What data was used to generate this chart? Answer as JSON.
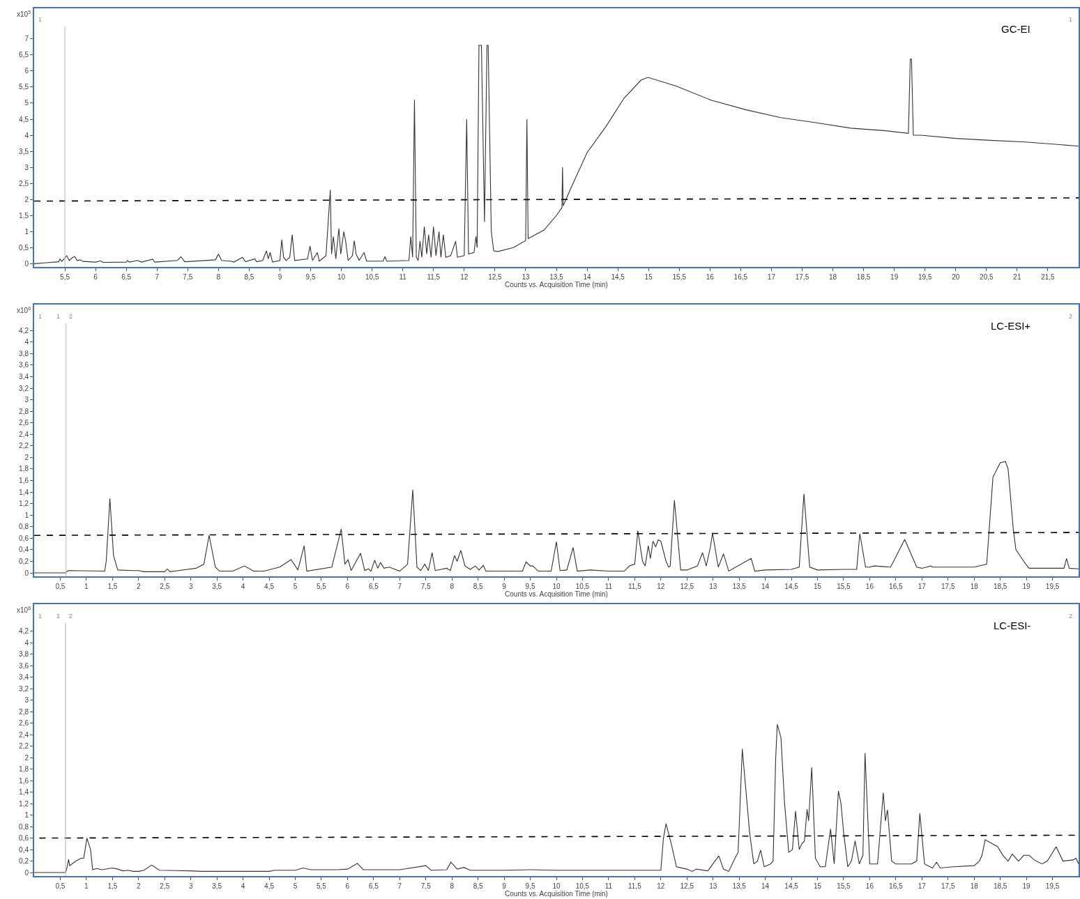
{
  "chart_data": [
    {
      "type": "line",
      "title": "GC-EI",
      "xlabel": "Counts vs. Acquisition Time (min)",
      "ylabel": "x10$^{5}$",
      "xlim": [
        5.0,
        22.0
      ],
      "ylim": [
        -0.1,
        7.95
      ],
      "xticks": [
        {
          "value": 5.5,
          "label": "5,5"
        },
        6,
        {
          "value": 6.5,
          "label": "6,5"
        },
        7,
        {
          "value": 7.5,
          "label": "7,5"
        },
        8,
        {
          "value": 8.5,
          "label": "8,5"
        },
        9,
        {
          "value": 9.5,
          "label": "9,5"
        },
        10,
        {
          "value": 10.5,
          "label": "10,5"
        },
        11,
        {
          "value": 11.5,
          "label": "11,5"
        },
        12,
        {
          "value": 12.5,
          "label": "12,5"
        },
        13,
        {
          "value": 13.5,
          "label": "13,5"
        },
        14,
        {
          "value": 14.5,
          "label": "14,5"
        },
        15,
        {
          "value": 15.5,
          "label": "15,5"
        },
        16,
        {
          "value": 16.5,
          "label": "16,5"
        },
        17,
        {
          "value": 17.5,
          "label": "17,5"
        },
        18,
        {
          "value": 18.5,
          "label": "18,5"
        },
        19,
        {
          "value": 19.5,
          "label": "19,5"
        },
        20,
        {
          "value": 20.5,
          "label": "20,5"
        },
        21,
        {
          "value": 21.5,
          "label": "21,5"
        }
      ],
      "yticks": [
        0,
        {
          "value": 0.5,
          "label": "0,5"
        },
        1,
        {
          "value": 1.5,
          "label": "1,5"
        },
        2,
        {
          "value": 2.5,
          "label": "2,5"
        },
        3,
        {
          "value": 3.5,
          "label": "3,5"
        },
        4,
        {
          "value": 4.5,
          "label": "4,5"
        },
        5,
        {
          "value": 5.5,
          "label": "5,5"
        },
        6,
        {
          "value": 6.5,
          "label": "6,5"
        },
        7
      ],
      "series": [
        {
          "color": "#333333",
          "line_style": "solid",
          "x": [
            5.0,
            5.2,
            5.4,
            5.42,
            5.45,
            5.53,
            5.57,
            5.63,
            5.66,
            5.7,
            5.75,
            5.8,
            6.0,
            6.08,
            6.12,
            6.5,
            6.52,
            6.55,
            6.68,
            6.75,
            6.93,
            6.96,
            7.33,
            7.39,
            7.45,
            7.95,
            8.0,
            8.05,
            8.2,
            8.25,
            8.39,
            8.44,
            8.59,
            8.62,
            8.72,
            8.78,
            8.81,
            8.84,
            8.88,
            9.0,
            9.03,
            9.06,
            9.1,
            9.16,
            9.2,
            9.24,
            9.45,
            9.49,
            9.53,
            9.61,
            9.64,
            9.75,
            9.82,
            9.84,
            9.87,
            9.91,
            9.96,
            9.99,
            10.04,
            10.07,
            10.11,
            10.18,
            10.21,
            10.24,
            10.29,
            10.37,
            10.41,
            10.68,
            10.71,
            10.74,
            11.1,
            11.13,
            11.16,
            11.19,
            11.22,
            11.25,
            11.28,
            11.31,
            11.35,
            11.39,
            11.42,
            11.46,
            11.5,
            11.54,
            11.59,
            11.62,
            11.66,
            11.7,
            11.78,
            11.86,
            11.89,
            12.0,
            12.04,
            12.07,
            12.16,
            12.19,
            12.21,
            12.24,
            12.28,
            12.33,
            12.37,
            12.39,
            12.44,
            12.48,
            12.55,
            12.8,
            13.0,
            13.02,
            13.04,
            13.3,
            13.5,
            13.59,
            13.6,
            13.61,
            13.74,
            14.0,
            14.31,
            14.6,
            14.88,
            14.99,
            15.45,
            16.02,
            16.59,
            17.15,
            17.72,
            18.29,
            18.86,
            19.23,
            19.26,
            19.28,
            19.31,
            19.43,
            20.0,
            20.56,
            21.13,
            22.0
          ],
          "values": [
            0.0,
            0.03,
            0.06,
            0.15,
            0.07,
            0.25,
            0.1,
            0.2,
            0.22,
            0.1,
            0.12,
            0.07,
            0.05,
            0.09,
            0.04,
            0.05,
            0.1,
            0.05,
            0.1,
            0.05,
            0.14,
            0.05,
            0.1,
            0.22,
            0.06,
            0.12,
            0.3,
            0.1,
            0.08,
            0.05,
            0.2,
            0.06,
            0.15,
            0.06,
            0.1,
            0.4,
            0.15,
            0.35,
            0.05,
            0.1,
            0.75,
            0.2,
            0.1,
            0.2,
            0.9,
            0.1,
            0.15,
            0.55,
            0.1,
            0.35,
            0.08,
            0.25,
            2.3,
            0.3,
            0.85,
            0.15,
            1.1,
            0.3,
            1.0,
            0.7,
            0.1,
            0.25,
            0.72,
            0.3,
            0.1,
            0.35,
            0.08,
            0.08,
            0.22,
            0.08,
            0.1,
            0.85,
            0.2,
            5.1,
            0.2,
            0.1,
            0.7,
            0.2,
            1.15,
            0.3,
            0.9,
            0.2,
            1.15,
            0.25,
            1.0,
            0.2,
            0.9,
            0.2,
            0.25,
            0.7,
            0.2,
            0.25,
            4.5,
            0.3,
            0.35,
            0.85,
            0.5,
            6.8,
            6.8,
            1.3,
            6.8,
            6.8,
            1.0,
            0.4,
            0.38,
            0.5,
            0.72,
            4.5,
            0.78,
            1.05,
            1.5,
            1.75,
            3.0,
            1.8,
            2.37,
            3.46,
            4.28,
            5.15,
            5.72,
            5.8,
            5.53,
            5.09,
            4.79,
            4.55,
            4.39,
            4.22,
            4.14,
            4.06,
            6.37,
            6.37,
            4.0,
            4.0,
            3.9,
            3.84,
            3.79,
            3.66
          ]
        },
        {
          "color": "#000000",
          "line_style": "dashed",
          "x": [
            5.0,
            22.0
          ],
          "values": [
            1.95,
            2.05
          ]
        }
      ],
      "ref_lines": [
        {
          "axis": "x",
          "value": 5.5,
          "color": "#c0c0c0"
        }
      ],
      "annotations": [
        "1",
        "1"
      ]
    },
    {
      "type": "line",
      "title": "LC-ESI+",
      "xlabel": "Counts vs. Acquisition Time (min)",
      "ylabel": "x10$^{6}$",
      "xlim": [
        0,
        20
      ],
      "ylim": [
        -0.06,
        4.65
      ],
      "xticks": [
        {
          "value": 0.5,
          "label": "0,5"
        },
        1,
        {
          "value": 1.5,
          "label": "1,5"
        },
        2,
        {
          "value": 2.5,
          "label": "2,5"
        },
        3,
        {
          "value": 3.5,
          "label": "3,5"
        },
        4,
        {
          "value": 4.5,
          "label": "4,5"
        },
        5,
        {
          "value": 5.5,
          "label": "5,5"
        },
        6,
        {
          "value": 6.5,
          "label": "6,5"
        },
        7,
        {
          "value": 7.5,
          "label": "7,5"
        },
        8,
        {
          "value": 8.5,
          "label": "8,5"
        },
        9,
        {
          "value": 9.5,
          "label": "9,5"
        },
        10,
        {
          "value": 10.5,
          "label": "10,5"
        },
        11,
        {
          "value": 11.5,
          "label": "11,5"
        },
        12,
        {
          "value": 12.5,
          "label": "12,5"
        },
        13,
        {
          "value": 13.5,
          "label": "13,5"
        },
        14,
        {
          "value": 14.5,
          "label": "14,5"
        },
        15,
        {
          "value": 15.5,
          "label": "15,5"
        },
        16,
        {
          "value": 16.5,
          "label": "16,5"
        },
        17,
        {
          "value": 17.5,
          "label": "17,5"
        },
        18,
        {
          "value": 18.5,
          "label": "18,5"
        },
        19,
        {
          "value": 19.5,
          "label": "19,5"
        }
      ],
      "yticks": [
        0,
        {
          "value": 0.2,
          "label": "0,2"
        },
        {
          "value": 0.4,
          "label": "0,4"
        },
        {
          "value": 0.6,
          "label": "0,6"
        },
        {
          "value": 0.8,
          "label": "0,8"
        },
        1,
        {
          "value": 1.2,
          "label": "1,2"
        },
        {
          "value": 1.4,
          "label": "1,4"
        },
        {
          "value": 1.6,
          "label": "1,6"
        },
        {
          "value": 1.8,
          "label": "1,8"
        },
        2,
        {
          "value": 2.2,
          "label": "2,2"
        },
        {
          "value": 2.4,
          "label": "2,4"
        },
        {
          "value": 2.6,
          "label": "2,6"
        },
        {
          "value": 2.8,
          "label": "2,8"
        },
        3,
        {
          "value": 3.2,
          "label": "3,2"
        },
        {
          "value": 3.4,
          "label": "3,4"
        },
        {
          "value": 3.6,
          "label": "3,6"
        },
        {
          "value": 3.8,
          "label": "3,8"
        },
        4,
        {
          "value": 4.2,
          "label": "4,2"
        }
      ],
      "series": [
        {
          "color": "#333333",
          "line_style": "solid",
          "x": [
            0,
            0.6,
            0.65,
            1.35,
            1.38,
            1.45,
            1.52,
            1.6,
            1.9,
            2.0,
            2.1,
            2.5,
            2.55,
            2.6,
            3.1,
            3.25,
            3.35,
            3.47,
            3.55,
            3.8,
            4.03,
            4.2,
            4.4,
            4.7,
            4.92,
            5.05,
            5.17,
            5.22,
            5.7,
            5.88,
            5.95,
            6.01,
            6.07,
            6.25,
            6.33,
            6.4,
            6.45,
            6.52,
            6.58,
            6.63,
            6.7,
            6.8,
            7.0,
            7.15,
            7.25,
            7.33,
            7.4,
            7.48,
            7.55,
            7.62,
            7.68,
            7.9,
            7.97,
            8.05,
            8.1,
            8.17,
            8.25,
            8.35,
            8.45,
            8.52,
            8.6,
            8.65,
            9.35,
            9.42,
            9.5,
            9.55,
            9.65,
            9.9,
            10.0,
            10.07,
            10.2,
            10.32,
            10.4,
            10.65,
            11.0,
            11.3,
            11.4,
            11.5,
            11.56,
            11.65,
            11.7,
            11.76,
            11.8,
            11.85,
            11.9,
            11.95,
            12.0,
            12.1,
            12.15,
            12.18,
            12.26,
            12.38,
            12.5,
            12.7,
            12.8,
            12.87,
            12.95,
            12.99,
            13.1,
            13.2,
            13.3,
            13.73,
            13.8,
            14.0,
            14.5,
            14.65,
            14.74,
            14.85,
            15.0,
            15.5,
            15.75,
            15.81,
            15.92,
            16.0,
            16.08,
            16.4,
            16.67,
            16.9,
            17.0,
            17.17,
            17.2,
            18.0,
            18.24,
            18.36,
            18.5,
            18.6,
            18.65,
            18.75,
            18.8,
            18.95,
            19.05,
            19.5,
            19.72,
            19.77,
            19.82,
            20.0
          ],
          "values": [
            0,
            0,
            0.04,
            0.03,
            0.2,
            1.29,
            0.3,
            0.05,
            0.04,
            0.04,
            0.02,
            0.02,
            0.07,
            0.02,
            0.08,
            0.15,
            0.65,
            0.1,
            0.03,
            0.03,
            0.12,
            0.03,
            0.03,
            0.1,
            0.23,
            0.05,
            0.47,
            0.03,
            0.1,
            0.76,
            0.15,
            0.23,
            0.04,
            0.34,
            0.04,
            0.07,
            0.03,
            0.22,
            0.08,
            0.18,
            0.08,
            0.1,
            0.03,
            0.15,
            1.44,
            0.1,
            0.04,
            0.15,
            0.04,
            0.35,
            0.04,
            0.08,
            0.04,
            0.3,
            0.2,
            0.39,
            0.12,
            0.06,
            0.12,
            0.05,
            0.13,
            0.03,
            0.03,
            0.19,
            0.12,
            0.12,
            0.03,
            0.03,
            0.54,
            0.04,
            0.05,
            0.44,
            0.03,
            0.05,
            0.03,
            0.03,
            0.12,
            0.15,
            0.73,
            0.2,
            0.12,
            0.47,
            0.25,
            0.55,
            0.45,
            0.57,
            0.55,
            0.2,
            0.1,
            0.12,
            1.26,
            0.05,
            0.05,
            0.12,
            0.35,
            0.12,
            0.45,
            0.69,
            0.1,
            0.33,
            0.03,
            0.25,
            0.03,
            0.05,
            0.06,
            0.1,
            1.37,
            0.1,
            0.05,
            0.06,
            0.06,
            0.68,
            0.1,
            0.1,
            0.12,
            0.1,
            0.58,
            0.1,
            0.08,
            0.12,
            0.1,
            0.1,
            0.15,
            1.66,
            1.91,
            1.93,
            1.8,
            0.75,
            0.4,
            0.2,
            0.08,
            0.08,
            0.08,
            0.25,
            0.08,
            0.07
          ]
        },
        {
          "color": "#000000",
          "line_style": "dashed",
          "x": [
            0,
            20
          ],
          "values": [
            0.65,
            0.7
          ]
        }
      ],
      "ref_lines": [
        {
          "axis": "x",
          "value": 0.61,
          "color": "#c0c0c0"
        }
      ],
      "annotations": [
        "1",
        "1",
        "2",
        "2"
      ]
    },
    {
      "type": "line",
      "title": "LC-ESI-",
      "xlabel": "Counts vs. Acquisition Time (min)",
      "ylabel": "x10$^{6}$",
      "xlim": [
        0,
        20
      ],
      "ylim": [
        -0.06,
        4.67
      ],
      "xticks": [
        {
          "value": 0.5,
          "label": "0,5"
        },
        1,
        {
          "value": 1.5,
          "label": "1,5"
        },
        2,
        {
          "value": 2.5,
          "label": "2,5"
        },
        3,
        {
          "value": 3.5,
          "label": "3,5"
        },
        4,
        {
          "value": 4.5,
          "label": "4,5"
        },
        5,
        {
          "value": 5.5,
          "label": "5,5"
        },
        6,
        {
          "value": 6.5,
          "label": "6,5"
        },
        7,
        {
          "value": 7.5,
          "label": "7,5"
        },
        8,
        {
          "value": 8.5,
          "label": "8,5"
        },
        9,
        {
          "value": 9.5,
          "label": "9,5"
        },
        10,
        {
          "value": 10.5,
          "label": "10,5"
        },
        11,
        {
          "value": 11.5,
          "label": "11,5"
        },
        12,
        {
          "value": 12.5,
          "label": "12,5"
        },
        13,
        {
          "value": 13.5,
          "label": "13,5"
        },
        14,
        {
          "value": 14.5,
          "label": "14,5"
        },
        15,
        {
          "value": 15.5,
          "label": "15,5"
        },
        16,
        {
          "value": 16.5,
          "label": "16,5"
        },
        17,
        {
          "value": 17.5,
          "label": "17,5"
        },
        18,
        {
          "value": 18.5,
          "label": "18,5"
        },
        19,
        {
          "value": 19.5,
          "label": "19,5"
        }
      ],
      "yticks": [
        0,
        {
          "value": 0.2,
          "label": "0,2"
        },
        {
          "value": 0.4,
          "label": "0,4"
        },
        {
          "value": 0.6,
          "label": "0,6"
        },
        {
          "value": 0.8,
          "label": "0,8"
        },
        1,
        {
          "value": 1.2,
          "label": "1,2"
        },
        {
          "value": 1.4,
          "label": "1,4"
        },
        {
          "value": 1.6,
          "label": "1,6"
        },
        {
          "value": 1.8,
          "label": "1,8"
        },
        2,
        {
          "value": 2.2,
          "label": "2,2"
        },
        {
          "value": 2.4,
          "label": "2,4"
        },
        {
          "value": 2.6,
          "label": "2,6"
        },
        {
          "value": 2.8,
          "label": "2,8"
        },
        3,
        {
          "value": 3.2,
          "label": "3,2"
        },
        {
          "value": 3.4,
          "label": "3,4"
        },
        {
          "value": 3.6,
          "label": "3,6"
        },
        {
          "value": 3.8,
          "label": "3,8"
        },
        4,
        {
          "value": 4.2,
          "label": "4,2"
        }
      ],
      "series": [
        {
          "color": "#333333",
          "line_style": "solid",
          "x": [
            0,
            0.6,
            0.62,
            0.66,
            0.68,
            0.8,
            0.9,
            0.95,
            1.01,
            1.08,
            1.12,
            1.2,
            1.3,
            1.5,
            1.6,
            1.7,
            1.8,
            1.9,
            2.0,
            2.1,
            2.25,
            2.4,
            3.0,
            3.2,
            4.5,
            4.6,
            5.0,
            5.15,
            5.3,
            5.8,
            6.0,
            6.19,
            6.3,
            7.0,
            7.5,
            7.6,
            7.9,
            7.98,
            8.1,
            8.23,
            8.35,
            9.0,
            9.5,
            10.0,
            11.5,
            12.0,
            12.05,
            12.1,
            12.2,
            12.3,
            12.5,
            12.6,
            12.68,
            12.9,
            13.11,
            13.2,
            13.3,
            13.42,
            13.48,
            13.56,
            13.7,
            13.78,
            13.85,
            13.91,
            13.98,
            14.1,
            14.15,
            14.2,
            14.23,
            14.3,
            14.37,
            14.45,
            14.52,
            14.58,
            14.65,
            14.7,
            14.75,
            14.8,
            14.83,
            14.89,
            14.96,
            15.05,
            15.15,
            15.25,
            15.32,
            15.4,
            15.45,
            15.5,
            15.58,
            15.65,
            15.72,
            15.8,
            15.87,
            15.91,
            16.0,
            16.15,
            16.26,
            16.3,
            16.34,
            16.42,
            16.5,
            16.8,
            16.9,
            16.96,
            17.05,
            17.2,
            17.28,
            17.35,
            17.6,
            18.0,
            18.1,
            18.15,
            18.21,
            18.35,
            18.45,
            18.55,
            18.65,
            18.73,
            18.85,
            18.95,
            19.05,
            19.15,
            19.3,
            19.4,
            19.57,
            19.7,
            19.9,
            19.95,
            20.0
          ],
          "values": [
            0,
            0,
            0.05,
            0.23,
            0.12,
            0.2,
            0.25,
            0.25,
            0.6,
            0.4,
            0.05,
            0.07,
            0.05,
            0.08,
            0.06,
            0.03,
            0.04,
            0.02,
            0.02,
            0.04,
            0.13,
            0.04,
            0.03,
            0.02,
            0.02,
            0.04,
            0.04,
            0.08,
            0.05,
            0.05,
            0.06,
            0.16,
            0.05,
            0.05,
            0.12,
            0.04,
            0.05,
            0.18,
            0.06,
            0.09,
            0.04,
            0.04,
            0.05,
            0.04,
            0.04,
            0.04,
            0.6,
            0.85,
            0.5,
            0.1,
            0.06,
            0.02,
            0.06,
            0.03,
            0.29,
            0.06,
            0.02,
            0.25,
            0.35,
            2.15,
            0.7,
            0.15,
            0.2,
            0.39,
            0.1,
            0.15,
            0.2,
            2.0,
            2.58,
            2.35,
            1.2,
            0.35,
            0.4,
            1.07,
            0.4,
            0.5,
            0.55,
            1.1,
            0.9,
            1.83,
            0.25,
            0.1,
            0.1,
            0.76,
            0.15,
            1.42,
            1.2,
            0.7,
            0.1,
            0.2,
            0.55,
            0.15,
            0.3,
            2.08,
            0.15,
            0.15,
            1.39,
            0.9,
            1.09,
            0.2,
            0.15,
            0.15,
            0.2,
            1.03,
            0.15,
            0.08,
            0.18,
            0.08,
            0.1,
            0.12,
            0.2,
            0.3,
            0.57,
            0.5,
            0.45,
            0.3,
            0.2,
            0.32,
            0.2,
            0.3,
            0.3,
            0.22,
            0.15,
            0.2,
            0.45,
            0.2,
            0.22,
            0.25,
            0.15
          ]
        },
        {
          "color": "#000000",
          "line_style": "dashed",
          "x": [
            0.1,
            20
          ],
          "values": [
            0.6,
            0.65
          ]
        }
      ],
      "ref_lines": [
        {
          "axis": "x",
          "value": 0.6,
          "color": "#c0c0c0"
        }
      ],
      "annotations": [
        "1",
        "1",
        "2",
        "2"
      ]
    }
  ]
}
